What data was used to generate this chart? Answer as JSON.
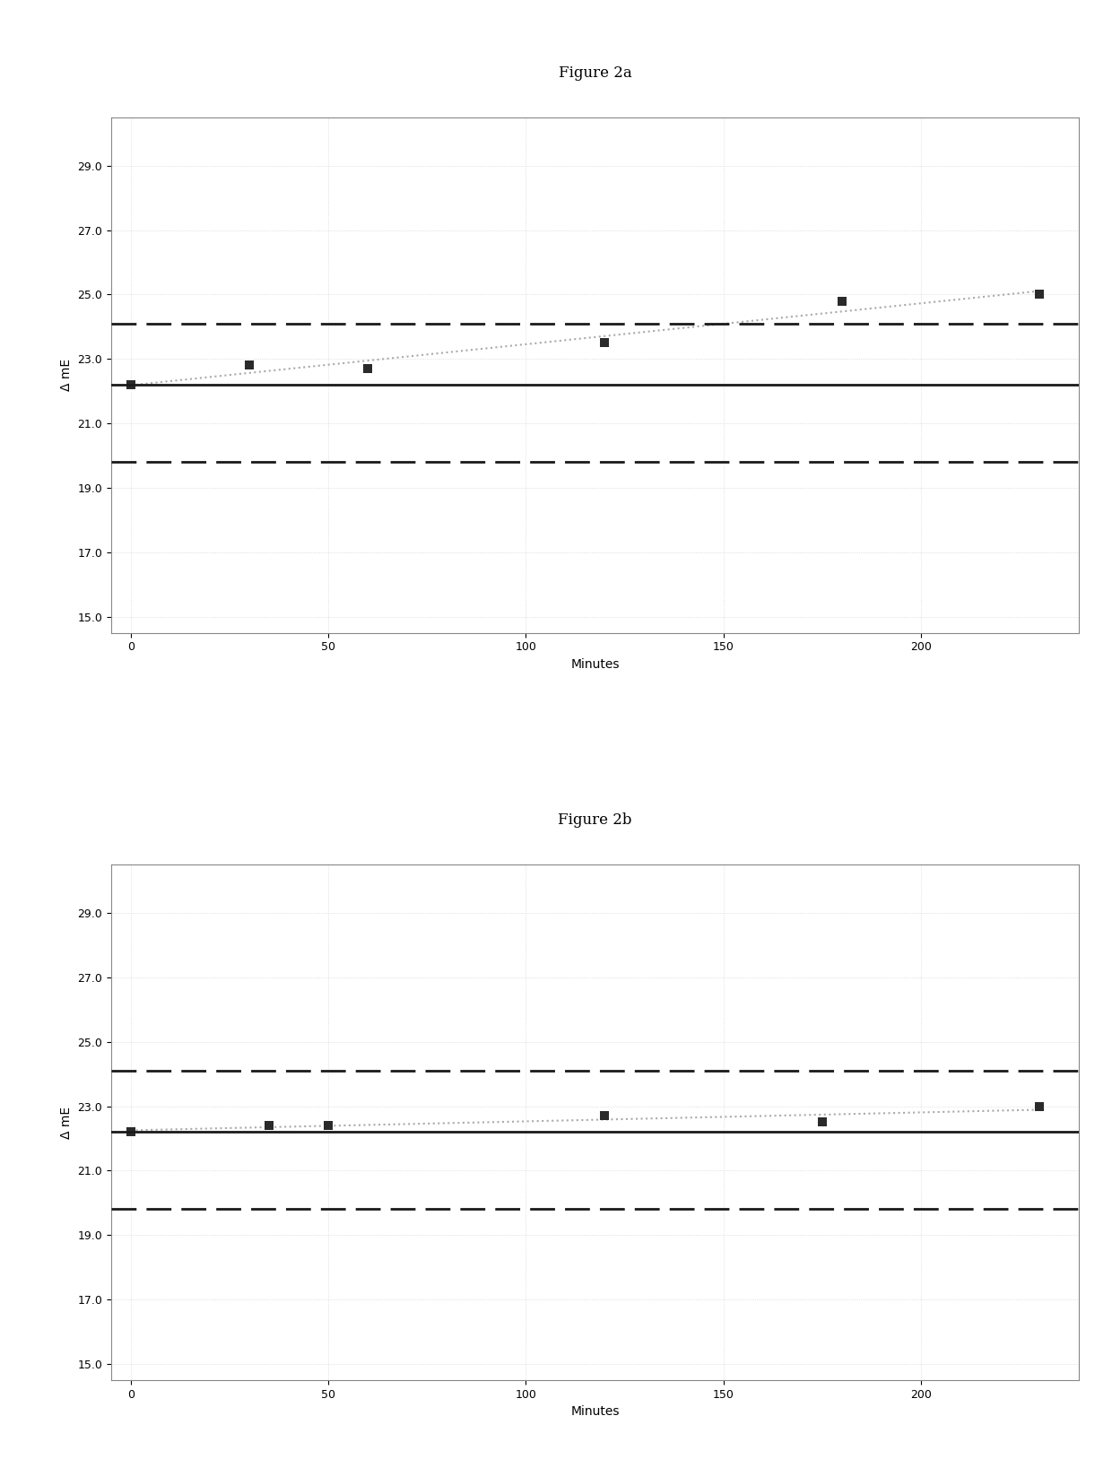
{
  "fig2a": {
    "title": "Figure 2a",
    "scatter_x": [
      0,
      30,
      60,
      120,
      180,
      230
    ],
    "scatter_y": [
      22.2,
      22.8,
      22.7,
      23.5,
      24.8,
      25.0
    ],
    "solid_line_y": 22.2,
    "upper_dash_y": 24.1,
    "lower_dash_y": 19.8,
    "xlabel": "Minutes",
    "ylabel": "Δ mE",
    "ylim": [
      14.5,
      30.5
    ],
    "xlim": [
      -5,
      240
    ],
    "yticks": [
      15.0,
      17.0,
      19.0,
      21.0,
      23.0,
      25.0,
      27.0,
      29.0
    ],
    "xticks": [
      0,
      50,
      100,
      150,
      200
    ]
  },
  "fig2b": {
    "title": "Figure 2b",
    "scatter_x": [
      0,
      35,
      50,
      120,
      175,
      230
    ],
    "scatter_y": [
      22.2,
      22.4,
      22.4,
      22.7,
      22.5,
      23.0
    ],
    "solid_line_y": 22.2,
    "upper_dash_y": 24.1,
    "lower_dash_y": 19.8,
    "xlabel": "Minutes",
    "ylabel": "Δ mE",
    "ylim": [
      14.5,
      30.5
    ],
    "xlim": [
      -5,
      240
    ],
    "yticks": [
      15.0,
      17.0,
      19.0,
      21.0,
      23.0,
      25.0,
      27.0,
      29.0
    ],
    "xticks": [
      0,
      50,
      100,
      150,
      200
    ]
  },
  "background_color": "#ffffff",
  "plot_bg_color": "#ffffff",
  "scatter_color": "#2a2a2a",
  "trend_color": "#aaaaaa",
  "solid_color": "#1a1a1a",
  "dash_color": "#1a1a1a",
  "title_fontsize": 12,
  "label_fontsize": 10,
  "tick_fontsize": 9,
  "figure_title_fontsize": 12
}
